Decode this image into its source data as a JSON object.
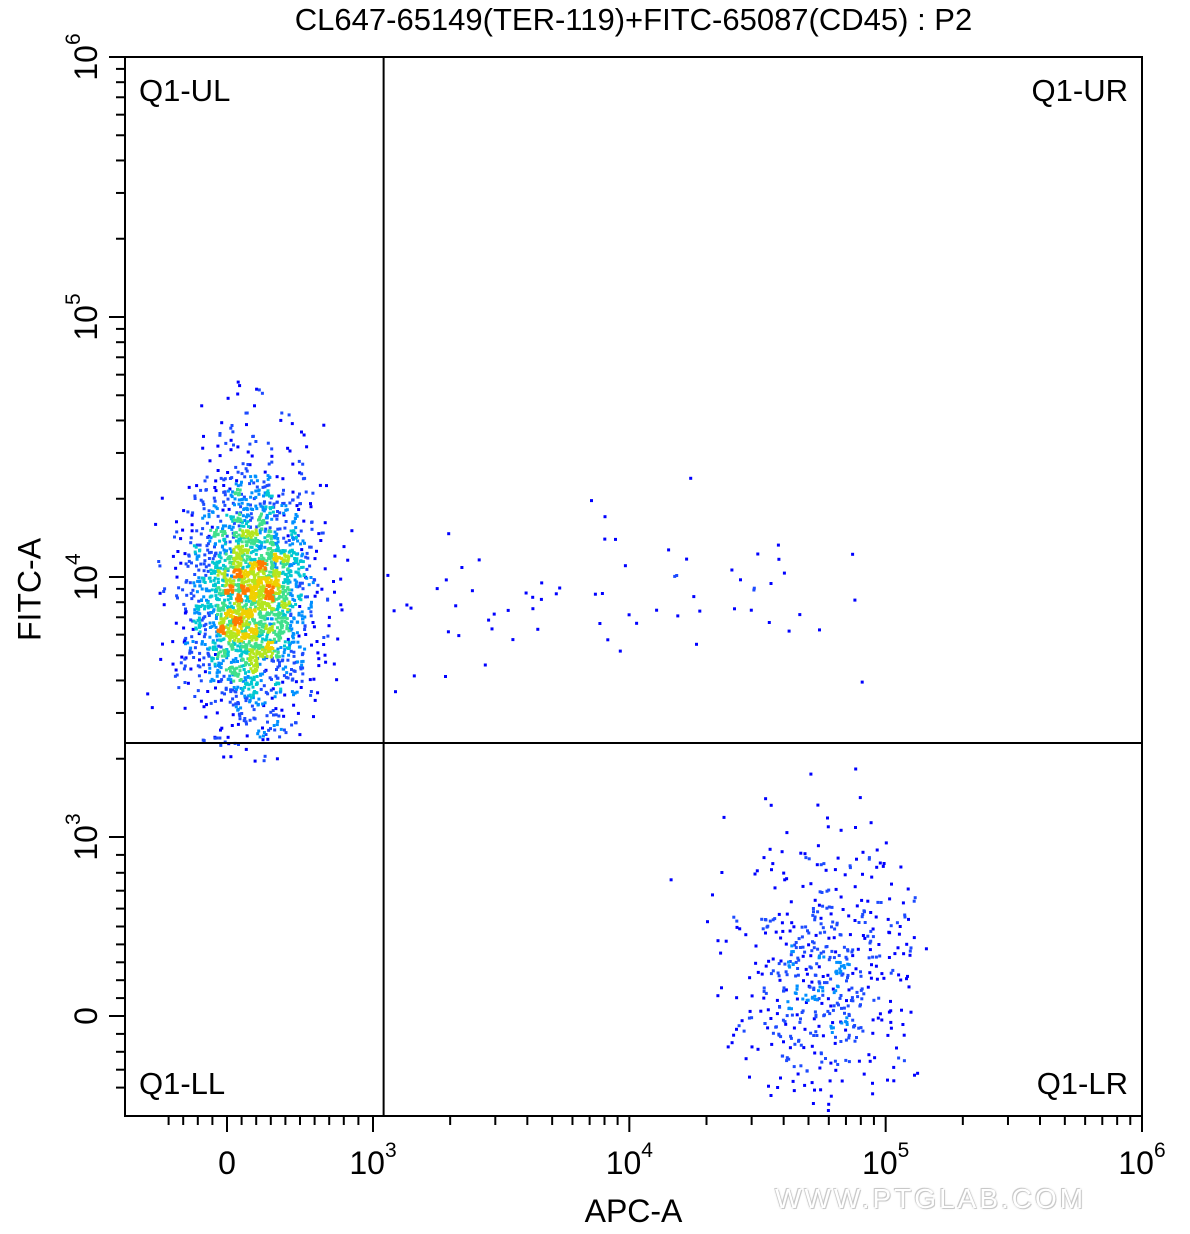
{
  "chart_data": {
    "type": "scatter",
    "style": "pseudocolor density dot plot (flow cytometry)",
    "title": "CL647-65149(TER-119)+FITC-65087(CD45) : P2",
    "xlabel": "APC-A",
    "ylabel": "FITC-A",
    "x_scale": "biexponential",
    "y_scale": "biexponential",
    "xlim": [
      -500,
      1000000
    ],
    "ylim": [
      -500,
      1000000
    ],
    "x_ticks": [
      {
        "value": 0,
        "label": "0"
      },
      {
        "value": 1000,
        "base": "10",
        "exp": "3"
      },
      {
        "value": 10000,
        "base": "10",
        "exp": "4"
      },
      {
        "value": 100000,
        "base": "10",
        "exp": "5"
      },
      {
        "value": 1000000,
        "base": "10",
        "exp": "6"
      }
    ],
    "y_ticks": [
      {
        "value": 0,
        "label": "0"
      },
      {
        "value": 1000,
        "base": "10",
        "exp": "3"
      },
      {
        "value": 10000,
        "base": "10",
        "exp": "4"
      },
      {
        "value": 100000,
        "base": "10",
        "exp": "5"
      },
      {
        "value": 1000000,
        "base": "10",
        "exp": "6"
      }
    ],
    "quadrant_gate": {
      "x_threshold": 1100,
      "y_threshold": 2300
    },
    "quadrants": [
      {
        "id": "UL",
        "label": "Q1-UL"
      },
      {
        "id": "UR",
        "label": "Q1-UR"
      },
      {
        "id": "LL",
        "label": "Q1-LL"
      },
      {
        "id": "LR",
        "label": "Q1-LR"
      }
    ],
    "populations": [
      {
        "name_hint": "upper-left cluster",
        "center": [
          150,
          8500
        ],
        "x_spread_decades": 0.35,
        "y_spread_decades": 0.22,
        "approx_events": 2600
      },
      {
        "name_hint": "lower-right cluster",
        "center": [
          58000,
          250
        ],
        "x_spread_decades": 0.14,
        "y_spread": 320,
        "approx_events": 560
      },
      {
        "name_hint": "sparse upper band",
        "x_range": [
          1100,
          80000
        ],
        "center_y": 8500,
        "approx_events": 70
      }
    ],
    "density_colors": [
      "#0000ff",
      "#1d4bff",
      "#0090ff",
      "#00c8d2",
      "#3fe08c",
      "#b4e61e",
      "#f0d000",
      "#ff7a00"
    ],
    "grid": false
  },
  "watermark": "WWW.PTGLAB.COM"
}
